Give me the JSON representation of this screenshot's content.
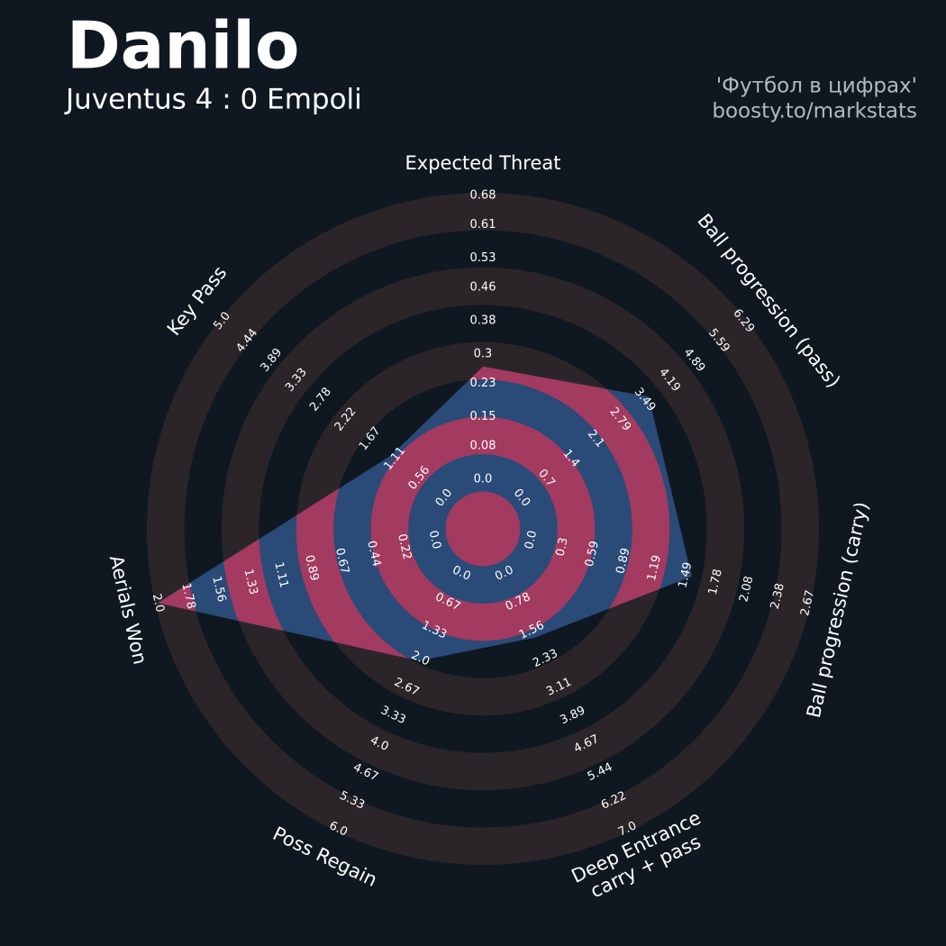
{
  "chart_data": {
    "type": "radar",
    "title": "Danilo",
    "subtitle": "Juventus 4 : 0 Empoli",
    "annotations": [
      "'Футбол в цифрах'",
      "boosty.to/markstats"
    ],
    "categories": [
      "Expected Threat",
      "Ball progression (pass)",
      "Ball progression (carry)",
      "Deep Entrance\ncarry + pass",
      "Poss Regain",
      "Aerials Won",
      "Key Pass"
    ],
    "axes": [
      {
        "lim": [
          0,
          0.68
        ],
        "ticks": [
          {
            "value": 0,
            "label": "0.0"
          },
          0.08,
          0.15,
          0.23,
          0.3,
          0.38,
          0.46,
          0.53,
          0.61,
          0.68
        ]
      },
      {
        "lim": [
          0,
          6.29
        ],
        "ticks": [
          {
            "value": 0,
            "label": "0.0"
          },
          0.7,
          1.4,
          2.1,
          2.79,
          3.49,
          4.19,
          4.89,
          5.59,
          6.29
        ]
      },
      {
        "lim": [
          0,
          2.67
        ],
        "ticks": [
          {
            "value": 0,
            "label": "0.0"
          },
          0.3,
          0.59,
          0.89,
          1.19,
          1.49,
          1.78,
          2.08,
          2.38,
          2.67
        ]
      },
      {
        "lim": [
          0,
          7
        ],
        "ticks": [
          {
            "value": 0,
            "label": "0.0"
          },
          0.78,
          1.56,
          2.33,
          3.11,
          3.89,
          4.67,
          5.44,
          6.22,
          {
            "value": 7,
            "label": "7.0"
          }
        ]
      },
      {
        "lim": [
          0,
          6
        ],
        "ticks": [
          {
            "value": 0,
            "label": "0.0"
          },
          0.67,
          1.33,
          {
            "value": 2,
            "label": "2.0"
          },
          2.67,
          3.33,
          {
            "value": 4,
            "label": "4.0"
          },
          4.67,
          5.33,
          {
            "value": 6,
            "label": "6.0"
          }
        ]
      },
      {
        "lim": [
          0,
          2
        ],
        "ticks": [
          {
            "value": 0,
            "label": "0.0"
          },
          0.22,
          0.44,
          0.67,
          0.89,
          1.11,
          1.33,
          1.56,
          1.78,
          {
            "value": 2,
            "label": "2.0"
          }
        ]
      },
      {
        "lim": [
          0,
          5
        ],
        "ticks": [
          {
            "value": 0,
            "label": "0.0"
          },
          0.56,
          1.11,
          1.67,
          2.22,
          2.78,
          3.33,
          3.89,
          4.44,
          {
            "value": 5,
            "label": "5.0"
          }
        ]
      }
    ],
    "series": [
      {
        "values": [
          0.27,
          3.6,
          1.55,
          1.75,
          2.05,
          2.0,
          1.2
        ],
        "color": "#2a4a78",
        "highlight_color": "#a33a60"
      }
    ],
    "ring_color": "#2b2529"
  }
}
